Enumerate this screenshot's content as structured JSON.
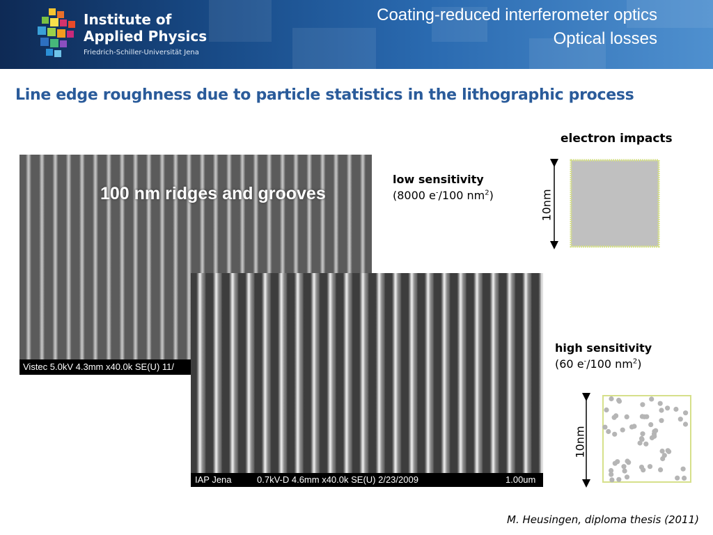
{
  "header": {
    "logo_line1": "Institute of",
    "logo_line2": "Applied Physics",
    "logo_sub": "Friedrich-Schiller-Universität Jena",
    "title_line1": "Coating-reduced interferometer optics",
    "title_line2": "Optical losses"
  },
  "heading": "Line edge roughness due to particle statistics in the lithographic process",
  "sem_top": {
    "overlay": "100 nm ridges and grooves",
    "info": "Vistec 5.0kV 4.3mm x40.0k SE(U) 11/"
  },
  "sem_bottom": {
    "info_left": "IAP Jena",
    "info_mid": "0.7kV-D 4.6mm x40.0k SE(U) 2/23/2009",
    "info_right": "1.00um"
  },
  "electron_impacts": "electron impacts",
  "low": {
    "title": "low sensitivity",
    "open": "(8000 e",
    "minus": "-",
    "mid": "/100 nm",
    "sq": "2",
    "close": ")",
    "scale": "10nm"
  },
  "high": {
    "title": "high sensitivity",
    "open": "(60 e",
    "minus": "-",
    "mid": "/100 nm",
    "sq": "2",
    "close": ")",
    "scale": "10nm"
  },
  "credit": "M. Heusingen,  diploma thesis (2011)",
  "colors": {
    "heading": "#2a5b9a",
    "square_fill": "#c0c0c0",
    "square_border": "#d6e08a",
    "dot": "#b5b5b5"
  }
}
